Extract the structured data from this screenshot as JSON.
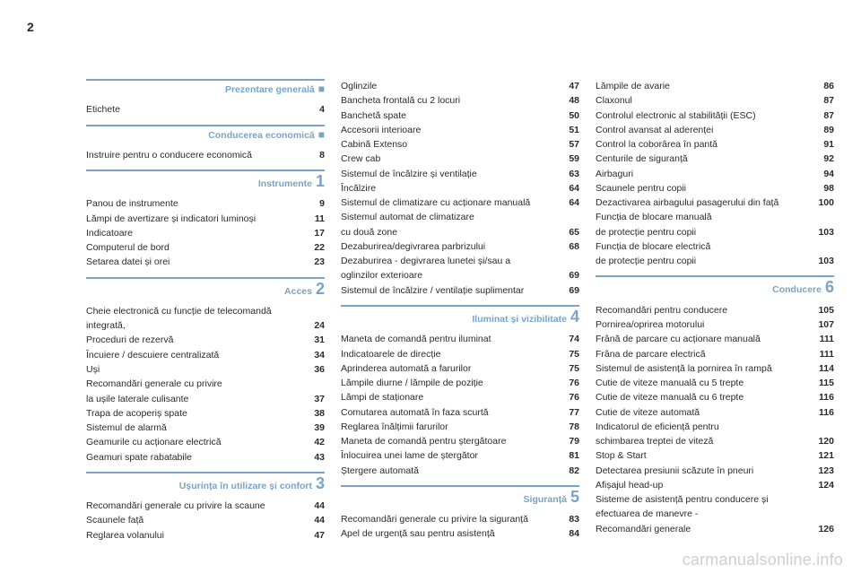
{
  "page_number": "2",
  "watermark": "carmanualsonline.info",
  "columns": [
    {
      "blocks": [
        {
          "type": "header",
          "title": "Prezentare generală",
          "marker": "■",
          "first": true
        },
        {
          "type": "row",
          "label": "Etichete",
          "pg": "4"
        },
        {
          "type": "header",
          "title": "Conducerea economică",
          "marker": "■"
        },
        {
          "type": "row",
          "label": "Instruire pentru o conducere economică",
          "pg": "8"
        },
        {
          "type": "header",
          "title": "Instrumente",
          "marker": "1"
        },
        {
          "type": "row",
          "label": "Panou de instrumente",
          "pg": "9"
        },
        {
          "type": "row",
          "label": "Lămpi de avertizare și indicatori luminoși",
          "pg": "11"
        },
        {
          "type": "row",
          "label": "Indicatoare",
          "pg": "17"
        },
        {
          "type": "row",
          "label": "Computerul de bord",
          "pg": "22"
        },
        {
          "type": "row",
          "label": "Setarea datei și orei",
          "pg": "23"
        },
        {
          "type": "header",
          "title": "Acces",
          "marker": "2"
        },
        {
          "type": "row",
          "label": "Cheie electronică cu funcție de telecomandă",
          "pg": ""
        },
        {
          "type": "row",
          "label": "integrată,",
          "pg": "24"
        },
        {
          "type": "row",
          "label": "Proceduri de rezervă",
          "pg": "31"
        },
        {
          "type": "row",
          "label": "Încuiere / descuiere centralizată",
          "pg": "34"
        },
        {
          "type": "row",
          "label": "Uși",
          "pg": "36"
        },
        {
          "type": "row",
          "label": "Recomandări generale cu privire",
          "pg": ""
        },
        {
          "type": "row",
          "label": "la ușile laterale culisante",
          "pg": "37"
        },
        {
          "type": "row",
          "label": "Trapa de acoperiș spate",
          "pg": "38"
        },
        {
          "type": "row",
          "label": "Sistemul de alarmă",
          "pg": "39"
        },
        {
          "type": "row",
          "label": "Geamurile cu acționare electrică",
          "pg": "42"
        },
        {
          "type": "row",
          "label": "Geamuri spate rabatabile",
          "pg": "43"
        },
        {
          "type": "header",
          "title": "Ușurința în utilizare și confort",
          "marker": "3"
        },
        {
          "type": "row",
          "label": "Recomandări generale cu privire la scaune",
          "pg": "44"
        },
        {
          "type": "row",
          "label": "Scaunele față",
          "pg": "44"
        },
        {
          "type": "row",
          "label": "Reglarea volanului",
          "pg": "47"
        }
      ]
    },
    {
      "blocks": [
        {
          "type": "row",
          "label": "Oglinzile",
          "pg": "47"
        },
        {
          "type": "row",
          "label": "Bancheta frontală cu 2 locuri",
          "pg": "48"
        },
        {
          "type": "row",
          "label": "Banchetă spate",
          "pg": "50"
        },
        {
          "type": "row",
          "label": "Accesorii interioare",
          "pg": "51"
        },
        {
          "type": "row",
          "label": "Cabină Extenso",
          "pg": "57"
        },
        {
          "type": "row",
          "label": "Crew cab",
          "pg": "59"
        },
        {
          "type": "row",
          "label": "Sistemul de încălzire și ventilație",
          "pg": "63"
        },
        {
          "type": "row",
          "label": "Încălzire",
          "pg": "64"
        },
        {
          "type": "row",
          "label": "Sistemul de climatizare cu acționare manuală",
          "pg": "64"
        },
        {
          "type": "row",
          "label": "Sistemul automat de climatizare",
          "pg": ""
        },
        {
          "type": "row",
          "label": "cu două zone",
          "pg": "65"
        },
        {
          "type": "row",
          "label": "Dezaburirea/degivrarea parbrizului",
          "pg": "68"
        },
        {
          "type": "row",
          "label": "Dezaburirea - degivrarea lunetei și/sau a",
          "pg": ""
        },
        {
          "type": "row",
          "label": "oglinzilor exterioare",
          "pg": "69"
        },
        {
          "type": "row",
          "label": "Sistemul de încălzire / ventilație suplimentar",
          "pg": "69"
        },
        {
          "type": "header",
          "title": "Iluminat și vizibilitate",
          "marker": "4"
        },
        {
          "type": "row",
          "label": "Maneta de comandă pentru iluminat",
          "pg": "74"
        },
        {
          "type": "row",
          "label": "Indicatoarele de direcție",
          "pg": "75"
        },
        {
          "type": "row",
          "label": "Aprinderea automată a farurilor",
          "pg": "75"
        },
        {
          "type": "row",
          "label": "Lămpile diurne / lămpile de poziție",
          "pg": "76"
        },
        {
          "type": "row",
          "label": "Lămpi de staționare",
          "pg": "76"
        },
        {
          "type": "row",
          "label": "Comutarea automată în faza scurtă",
          "pg": "77"
        },
        {
          "type": "row",
          "label": "Reglarea înălțimii farurilor",
          "pg": "78"
        },
        {
          "type": "row",
          "label": "Maneta de comandă pentru ștergătoare",
          "pg": "79"
        },
        {
          "type": "row",
          "label": "Înlocuirea unei lame de ștergător",
          "pg": "81"
        },
        {
          "type": "row",
          "label": "Ștergere automată",
          "pg": "82"
        },
        {
          "type": "header",
          "title": "Siguranță",
          "marker": "5"
        },
        {
          "type": "row",
          "label": "Recomandări generale cu privire la siguranță",
          "pg": "83"
        },
        {
          "type": "row",
          "label": "Apel de urgență sau pentru asistență",
          "pg": "84"
        }
      ]
    },
    {
      "blocks": [
        {
          "type": "row",
          "label": "Lămpile de avarie",
          "pg": "86"
        },
        {
          "type": "row",
          "label": "Claxonul",
          "pg": "87"
        },
        {
          "type": "row",
          "label": "Controlul electronic al stabilității (ESC)",
          "pg": "87"
        },
        {
          "type": "row",
          "label": "Control avansat al aderenței",
          "pg": "89"
        },
        {
          "type": "row",
          "label": "Control la coborârea în pantă",
          "pg": "91"
        },
        {
          "type": "row",
          "label": "Centurile de siguranță",
          "pg": "92"
        },
        {
          "type": "row",
          "label": "Airbaguri",
          "pg": "94"
        },
        {
          "type": "row",
          "label": "Scaunele pentru copii",
          "pg": "98"
        },
        {
          "type": "row",
          "label": "Dezactivarea airbagului pasagerului din față",
          "pg": "100"
        },
        {
          "type": "row",
          "label": "Funcția de blocare manuală",
          "pg": ""
        },
        {
          "type": "row",
          "label": "de protecție pentru copii",
          "pg": "103"
        },
        {
          "type": "row",
          "label": "Funcția de blocare electrică",
          "pg": ""
        },
        {
          "type": "row",
          "label": "de protecție pentru copii",
          "pg": "103"
        },
        {
          "type": "header",
          "title": "Conducere",
          "marker": "6"
        },
        {
          "type": "row",
          "label": "Recomandări pentru conducere",
          "pg": "105"
        },
        {
          "type": "row",
          "label": "Pornirea/oprirea motorului",
          "pg": "107"
        },
        {
          "type": "row",
          "label": "Frână de parcare cu acționare manuală",
          "pg": "111"
        },
        {
          "type": "row",
          "label": "Frâna de parcare electrică",
          "pg": "111"
        },
        {
          "type": "row",
          "label": "Sistemul de asistență la pornirea în rampă",
          "pg": "114"
        },
        {
          "type": "row",
          "label": "Cutie de viteze manuală cu 5 trepte",
          "pg": "115"
        },
        {
          "type": "row",
          "label": "Cutie de viteze manuală cu 6 trepte",
          "pg": "116"
        },
        {
          "type": "row",
          "label": "Cutie de viteze automată",
          "pg": "116"
        },
        {
          "type": "row",
          "label": "Indicatorul de eficiență pentru",
          "pg": ""
        },
        {
          "type": "row",
          "label": "schimbarea treptei de viteză",
          "pg": "120"
        },
        {
          "type": "row",
          "label": "Stop & Start",
          "pg": "121"
        },
        {
          "type": "row",
          "label": "Detectarea presiunii scăzute în pneuri",
          "pg": "123"
        },
        {
          "type": "row",
          "label": "Afișajul head-up",
          "pg": "124"
        },
        {
          "type": "row",
          "label": "Sisteme de asistență pentru conducere și",
          "pg": ""
        },
        {
          "type": "row",
          "label": "efectuarea de manevre -",
          "pg": ""
        },
        {
          "type": "row",
          "label": "Recomandări generale",
          "pg": "126"
        }
      ]
    }
  ]
}
